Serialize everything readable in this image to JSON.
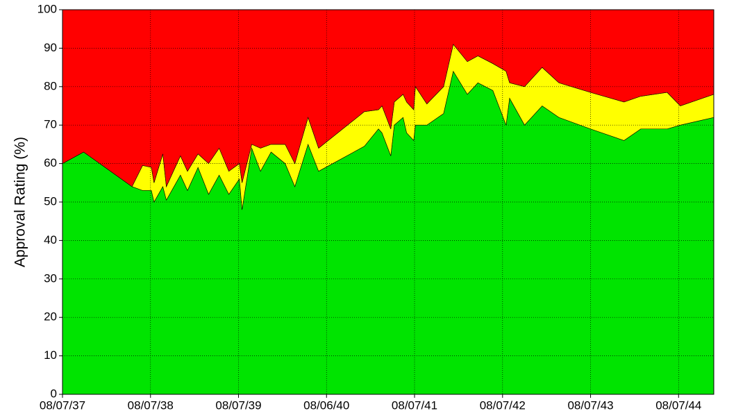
{
  "chart_data": {
    "type": "stacked_area",
    "y_label": "Approval Rating (%)",
    "x": [
      37.6,
      37.84,
      38.39,
      38.51,
      38.61,
      38.64,
      38.74,
      38.78,
      38.94,
      39.02,
      39.14,
      39.26,
      39.38,
      39.49,
      39.61,
      39.64,
      39.75,
      39.85,
      39.97,
      40.13,
      40.24,
      40.39,
      40.51,
      41.03,
      41.19,
      41.23,
      41.33,
      41.37,
      41.47,
      41.51,
      41.59,
      41.61,
      41.74,
      41.93,
      42.04,
      42.2,
      42.32,
      42.49,
      42.64,
      42.68,
      42.85,
      43.05,
      43.24,
      43.6,
      43.98,
      44.17,
      44.47,
      44.62,
      45.0
    ],
    "series": [
      {
        "color": "#00e400",
        "values": [
          60,
          63,
          54,
          53,
          53,
          50,
          54,
          50.5,
          57,
          53,
          59,
          52,
          57,
          52,
          56,
          48,
          64,
          58,
          63,
          60,
          54,
          65,
          58,
          64.5,
          69,
          68,
          62,
          70,
          72,
          68,
          66,
          70,
          70,
          73,
          84,
          78,
          81,
          79,
          70,
          77,
          70,
          75,
          72,
          69,
          66,
          69,
          69,
          70,
          72
        ]
      },
      {
        "color": "#ffff00",
        "values": [
          0,
          0,
          0,
          6.5,
          6,
          5,
          8.5,
          3.5,
          5,
          5,
          3.5,
          8,
          7,
          6,
          4,
          7,
          1,
          6,
          2,
          5,
          6,
          7,
          6,
          9,
          5,
          7,
          7,
          6,
          6,
          8,
          8,
          10,
          5.5,
          7,
          7,
          8.5,
          7,
          7,
          14,
          4,
          10,
          10,
          9,
          9.5,
          10,
          8.5,
          9.5,
          5,
          6
        ]
      },
      {
        "color": "#ff0000",
        "values": [
          40,
          37,
          46,
          40.5,
          41,
          45,
          37.5,
          46,
          38,
          42,
          37.5,
          40,
          36,
          42,
          40,
          45,
          35,
          36,
          35,
          35,
          40,
          28,
          36,
          26.5,
          26,
          25,
          31,
          24,
          22,
          24,
          26,
          20,
          24.5,
          20,
          9,
          13.5,
          12,
          14,
          16,
          19,
          20,
          15,
          19,
          21.5,
          24,
          22.5,
          21.5,
          25,
          22
        ]
      }
    ],
    "xlim": [
      37.6,
      45.0
    ],
    "xticks": [
      {
        "value": 37.6,
        "label": "08/07/37"
      },
      {
        "value": 38.6,
        "label": "08/07/38"
      },
      {
        "value": 39.6,
        "label": "08/07/39"
      },
      {
        "value": 40.6,
        "label": "08/06/40"
      },
      {
        "value": 41.6,
        "label": "08/07/41"
      },
      {
        "value": 42.6,
        "label": "08/07/42"
      },
      {
        "value": 43.6,
        "label": "08/07/43"
      },
      {
        "value": 44.6,
        "label": "08/07/44"
      }
    ],
    "ylim": [
      0,
      100
    ],
    "yticks": [
      0,
      10,
      20,
      30,
      40,
      50,
      60,
      70,
      80,
      90,
      100
    ],
    "grid": true
  }
}
